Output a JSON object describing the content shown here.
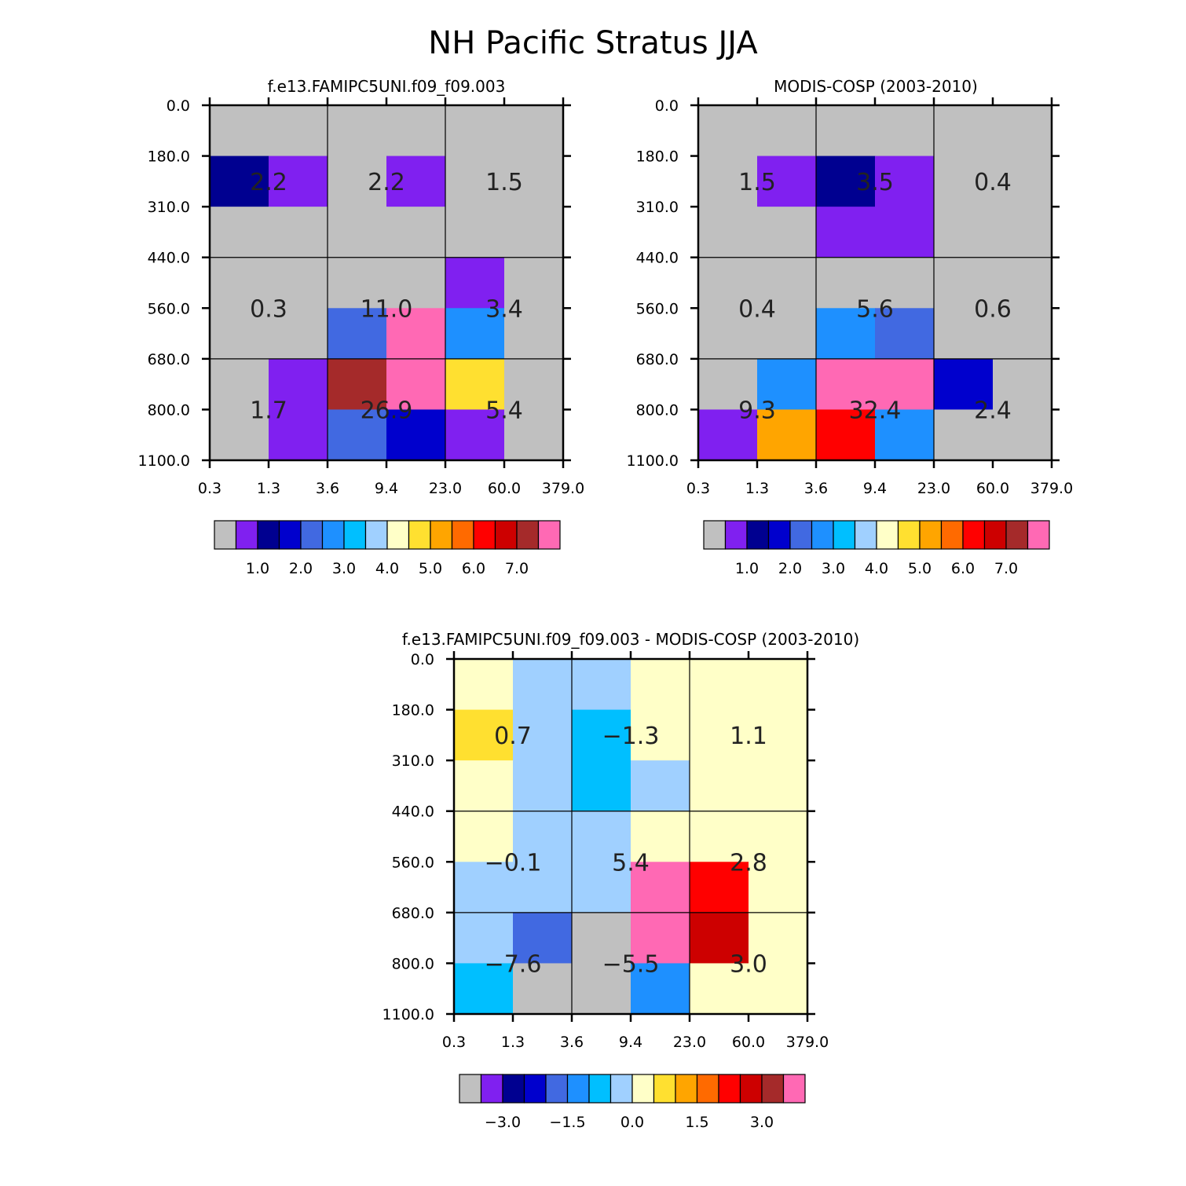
{
  "figure_title": "NH Pacific Stratus JJA",
  "palette": [
    "#c0c0c0",
    "#8020f0",
    "#000090",
    "#0000cd",
    "#4169e1",
    "#1e90ff",
    "#00bfff",
    "#a0d0ff",
    "#ffffc8",
    "#ffe030",
    "#ffa500",
    "#ff6a00",
    "#ff0000",
    "#cd0000",
    "#a52a2a",
    "#ff69b4"
  ],
  "chart_data": [
    {
      "type": "heatmap",
      "title": "f.e13.FAMIPC5UNI.f09_f09.003",
      "x_ticks": [
        "0.3",
        "1.3",
        "3.6",
        "9.4",
        "23.0",
        "60.0",
        "379.0"
      ],
      "y_ticks": [
        "0.0",
        "180.0",
        "310.0",
        "440.0",
        "560.0",
        "680.0",
        "800.0",
        "1100.0"
      ],
      "cell_palette_index": [
        [
          0,
          0,
          0,
          0,
          0,
          0
        ],
        [
          2,
          1,
          0,
          1,
          0,
          0
        ],
        [
          0,
          0,
          0,
          0,
          0,
          0
        ],
        [
          0,
          0,
          0,
          0,
          1,
          0
        ],
        [
          0,
          0,
          4,
          15,
          5,
          0
        ],
        [
          0,
          1,
          14,
          15,
          9,
          0
        ],
        [
          0,
          1,
          4,
          3,
          1,
          0
        ]
      ],
      "box_values": [
        [
          "2.2",
          "2.2",
          "1.5"
        ],
        [
          "0.3",
          "11.0",
          "3.4"
        ],
        [
          "1.7",
          "26.9",
          "5.4"
        ]
      ],
      "colorbar_labels": [
        "1.0",
        "2.0",
        "3.0",
        "4.0",
        "5.0",
        "6.0",
        "7.0"
      ]
    },
    {
      "type": "heatmap",
      "title": "MODIS-COSP (2003-2010)",
      "x_ticks": [
        "0.3",
        "1.3",
        "3.6",
        "9.4",
        "23.0",
        "60.0",
        "379.0"
      ],
      "y_ticks": [
        "0.0",
        "180.0",
        "310.0",
        "440.0",
        "560.0",
        "680.0",
        "800.0",
        "1100.0"
      ],
      "cell_palette_index": [
        [
          0,
          0,
          0,
          0,
          0,
          0
        ],
        [
          0,
          1,
          2,
          1,
          0,
          0
        ],
        [
          0,
          0,
          1,
          1,
          0,
          0
        ],
        [
          0,
          0,
          0,
          0,
          0,
          0
        ],
        [
          0,
          0,
          5,
          4,
          0,
          0
        ],
        [
          0,
          5,
          15,
          15,
          3,
          0
        ],
        [
          1,
          10,
          12,
          5,
          0,
          0
        ]
      ],
      "box_values": [
        [
          "1.5",
          "3.5",
          "0.4"
        ],
        [
          "0.4",
          "5.6",
          "0.6"
        ],
        [
          "9.3",
          "32.4",
          "2.4"
        ]
      ],
      "colorbar_labels": [
        "1.0",
        "2.0",
        "3.0",
        "4.0",
        "5.0",
        "6.0",
        "7.0"
      ]
    },
    {
      "type": "heatmap",
      "title": "f.e13.FAMIPC5UNI.f09_f09.003 - MODIS-COSP (2003-2010)",
      "x_ticks": [
        "0.3",
        "1.3",
        "3.6",
        "9.4",
        "23.0",
        "60.0",
        "379.0"
      ],
      "y_ticks": [
        "0.0",
        "180.0",
        "310.0",
        "440.0",
        "560.0",
        "680.0",
        "800.0",
        "1100.0"
      ],
      "cell_palette_index": [
        [
          8,
          7,
          7,
          8,
          8,
          8
        ],
        [
          9,
          7,
          6,
          8,
          8,
          8
        ],
        [
          8,
          7,
          6,
          7,
          8,
          8
        ],
        [
          8,
          7,
          7,
          8,
          8,
          8
        ],
        [
          7,
          7,
          7,
          15,
          12,
          8
        ],
        [
          7,
          4,
          0,
          15,
          13,
          8
        ],
        [
          6,
          0,
          0,
          5,
          8,
          8
        ]
      ],
      "box_values": [
        [
          "0.7",
          "-1.3",
          "1.1"
        ],
        [
          "-0.1",
          "5.4",
          "2.8"
        ],
        [
          "-7.6",
          "-5.5",
          "3.0"
        ]
      ],
      "colorbar_labels": [
        "-3.0",
        "-1.5",
        "0.0",
        "1.5",
        "3.0"
      ]
    }
  ]
}
